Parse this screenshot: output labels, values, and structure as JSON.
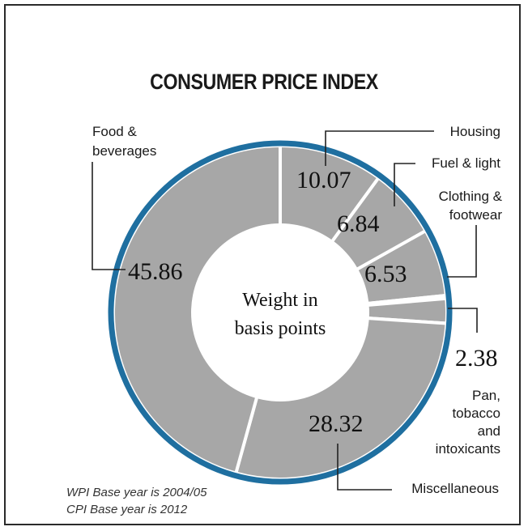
{
  "chart_data": {
    "type": "pie",
    "title": "CONSUMER PRICE INDEX",
    "center_label": [
      "Weight in",
      "basis points"
    ],
    "slices": [
      {
        "label": "Housing",
        "value": 10.07
      },
      {
        "label": "Fuel & light",
        "value": 6.84
      },
      {
        "label": "Clothing & footwear",
        "value": 6.53
      },
      {
        "label": "",
        "value": 0.3
      },
      {
        "label": "Pan, tobacco and intoxicants",
        "value": 2.38
      },
      {
        "label": "Miscellaneous",
        "value": 28.32
      },
      {
        "label": "Food & beverages",
        "value": 45.86
      }
    ],
    "value_labels": {
      "housing": "10.07",
      "fuel": "6.84",
      "clothing": "6.53",
      "pan": "2.38",
      "misc": "28.32",
      "food": "45.86"
    },
    "category_labels": {
      "housing": [
        "Housing"
      ],
      "fuel": [
        "Fuel & light"
      ],
      "clothing": [
        "Clothing &",
        "footwear"
      ],
      "pan": [
        "Pan,",
        "tobacco",
        "and",
        "intoxicants"
      ],
      "misc": [
        "Miscellaneous"
      ],
      "food": [
        "Food &",
        "beverages"
      ]
    },
    "colors": {
      "slice": "#a7a7a7",
      "separator": "#ffffff",
      "ring": "#1f6fa0",
      "center": "#ffffff"
    }
  },
  "footnotes": [
    "WPI Base year is 2004/05",
    "CPI Base year is 2012"
  ]
}
